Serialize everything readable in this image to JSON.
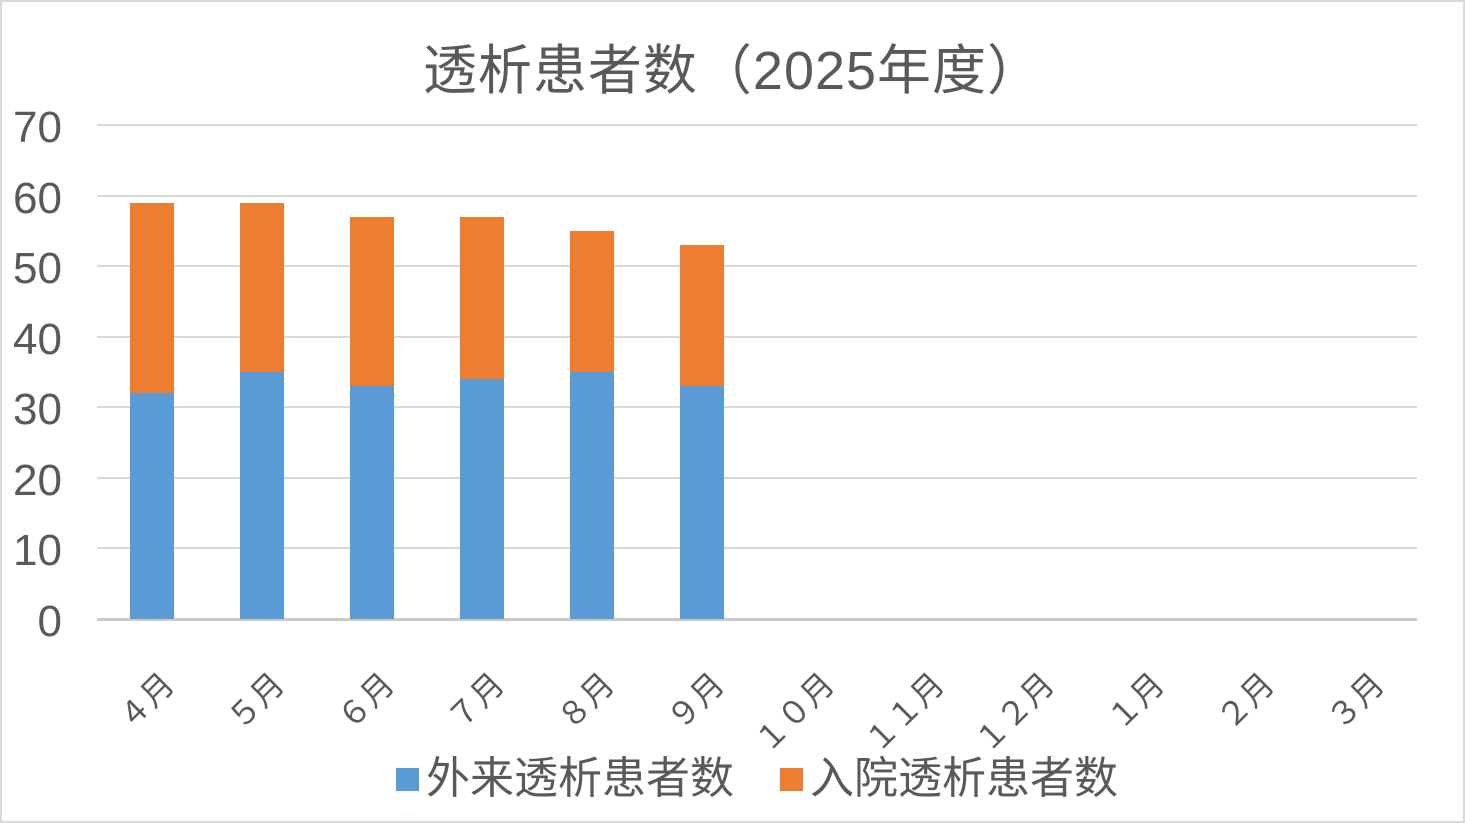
{
  "chart_data": {
    "type": "bar",
    "stacked": true,
    "title": "透析患者数（2025年度）",
    "categories": [
      "４月",
      "５月",
      "６月",
      "７月",
      "８月",
      "９月",
      "１０月",
      "１１月",
      "１２月",
      "１月",
      "２月",
      "３月"
    ],
    "series": [
      {
        "name": "外来透析患者数",
        "color": "#5B9BD5",
        "values": [
          32,
          35,
          33,
          34,
          35,
          33,
          null,
          null,
          null,
          null,
          null,
          null
        ]
      },
      {
        "name": "入院透析患者数",
        "color": "#ED7D31",
        "values": [
          27,
          24,
          24,
          23,
          20,
          20,
          null,
          null,
          null,
          null,
          null,
          null
        ]
      }
    ],
    "stacked_totals": [
      59,
      59,
      57,
      57,
      55,
      53,
      null,
      null,
      null,
      null,
      null,
      null
    ],
    "xlabel": "",
    "ylabel": "",
    "ylim": [
      0,
      70
    ],
    "yticks": [
      0,
      10,
      20,
      30,
      40,
      50,
      60,
      70
    ],
    "grid": true,
    "legend_position": "bottom"
  },
  "style": {
    "text_color": "#595959",
    "gridline_color": "#D9D9D9",
    "axis_line_color": "#C9C9C9",
    "background": "#FFFFFF",
    "border_color": "#D9D9D9"
  }
}
